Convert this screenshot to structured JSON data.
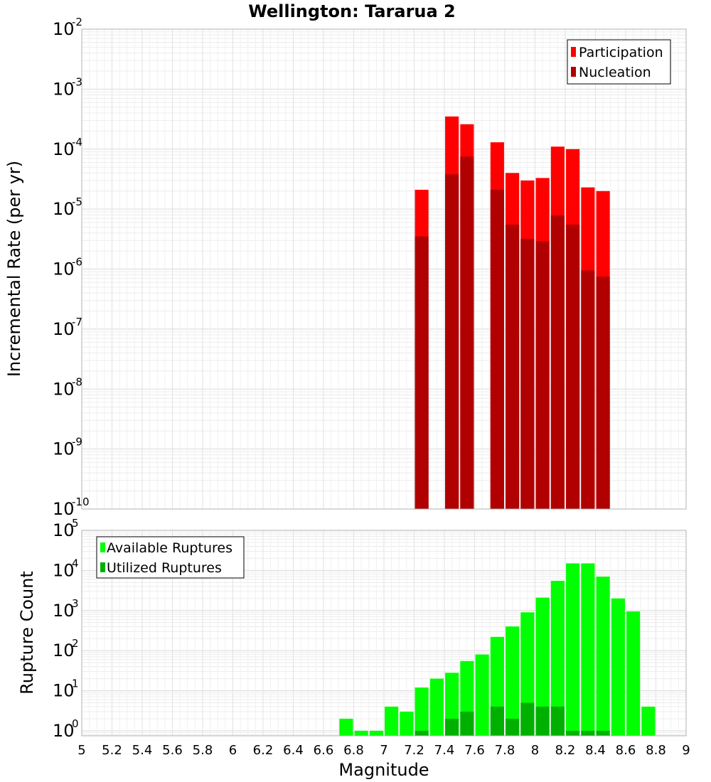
{
  "chart_data": [
    {
      "type": "bar",
      "title": "Wellington: Tararua 2",
      "xlabel": "",
      "ylabel": "Incremental Rate (per yr)",
      "xlim": [
        5,
        9
      ],
      "ylim": [
        1e-10,
        0.01
      ],
      "yscale": "log",
      "y_tick_base": "10",
      "y_tick_exponents": [
        "-10",
        "-9",
        "-8",
        "-7",
        "-6",
        "-5",
        "-4",
        "-3",
        "-2"
      ],
      "grid": true,
      "legend_position": "top-right",
      "bar_width": 0.09,
      "x": [
        7.25,
        7.45,
        7.55,
        7.75,
        7.85,
        7.95,
        8.05,
        8.15,
        8.25,
        8.35,
        8.45
      ],
      "series": [
        {
          "name": "Participation",
          "color": "#ff0000",
          "values": [
            2.1e-05,
            0.00035,
            0.00026,
            0.00013,
            4e-05,
            3e-05,
            3.3e-05,
            0.00011,
            0.0001,
            2.3e-05,
            2e-05
          ]
        },
        {
          "name": "Nucleation",
          "color": "#b00000",
          "values": [
            3.5e-06,
            3.8e-05,
            7.5e-05,
            2.1e-05,
            5.5e-06,
            3.2e-06,
            2.9e-06,
            7.8e-06,
            5.5e-06,
            9.5e-07,
            7.5e-07
          ]
        }
      ]
    },
    {
      "type": "bar",
      "title": "",
      "xlabel": "Magnitude",
      "ylabel": "Rupture Count",
      "xlim": [
        5,
        9
      ],
      "ylim": [
        0.75,
        100000
      ],
      "yscale": "log",
      "y_tick_base": "10",
      "y_tick_exponents": [
        "0",
        "1",
        "2",
        "3",
        "4",
        "5"
      ],
      "x_ticks": [
        "5",
        "5.2",
        "5.4",
        "5.6",
        "5.8",
        "6",
        "6.2",
        "6.4",
        "6.6",
        "6.8",
        "7",
        "7.2",
        "7.4",
        "7.6",
        "7.8",
        "8",
        "8.2",
        "8.4",
        "8.6",
        "8.8",
        "9"
      ],
      "grid": true,
      "legend_position": "top-left",
      "bar_width": 0.09,
      "x": [
        6.75,
        6.85,
        6.95,
        7.05,
        7.15,
        7.25,
        7.35,
        7.45,
        7.55,
        7.65,
        7.75,
        7.85,
        7.95,
        8.05,
        8.15,
        8.25,
        8.35,
        8.45,
        8.55,
        8.65,
        8.75
      ],
      "series": [
        {
          "name": "Available Ruptures",
          "color": "#00ff00",
          "values": [
            2,
            1,
            1,
            4,
            3,
            12,
            20,
            28,
            55,
            80,
            220,
            400,
            900,
            2100,
            5500,
            15000,
            15000,
            7000,
            2000,
            950,
            4
          ]
        },
        {
          "name": "Utilized Ruptures",
          "color": "#00b000",
          "values": [
            0,
            0,
            0,
            0,
            0,
            1,
            0,
            2,
            3,
            0,
            4,
            2,
            5,
            4,
            4,
            1,
            1,
            1,
            0,
            0,
            0
          ]
        }
      ]
    }
  ]
}
